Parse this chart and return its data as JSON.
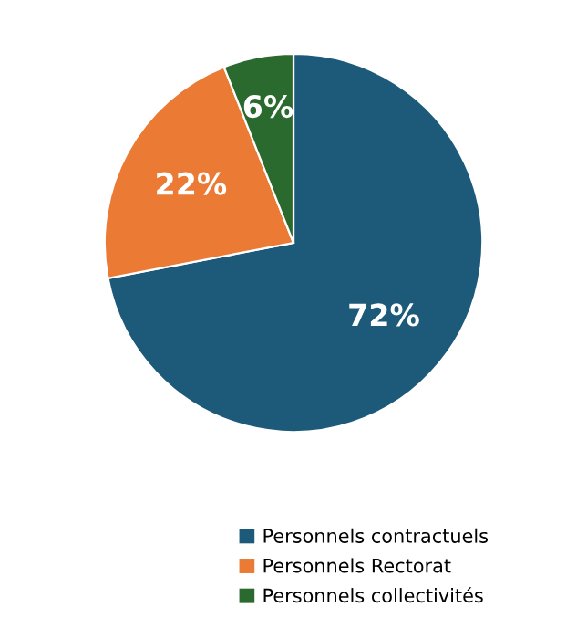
{
  "chart_data": {
    "type": "pie",
    "categories": [
      "Personnels contractuels",
      "Personnels Rectorat",
      "Personnels collectivités"
    ],
    "values": [
      72,
      22,
      6
    ],
    "colors": [
      "#1d5a7a",
      "#ea7a34",
      "#2b6a2e"
    ],
    "value_labels": [
      "72%",
      "22%",
      "6%"
    ],
    "legend": "bottom"
  }
}
